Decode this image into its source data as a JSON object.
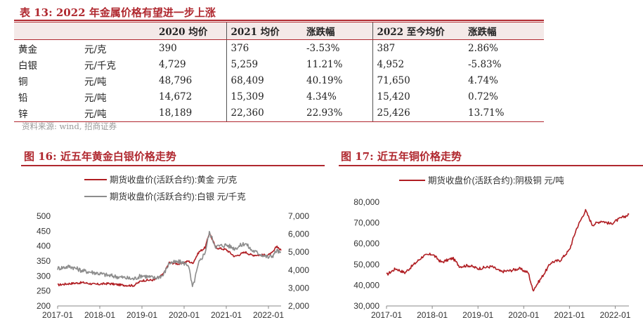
{
  "table": {
    "title": "表 13:  2022 年金属价格有望进一步上涨",
    "headers": [
      "",
      "",
      "2020 均价",
      "2021 均价",
      "涨跌幅",
      "2022 至今均价",
      "涨跌幅"
    ],
    "rows": [
      {
        "metal": "黄金",
        "unit": "元/克",
        "avg2020": "390",
        "avg2021": "376",
        "chg2021": "-3.53%",
        "avg2022": "387",
        "chg2022": "2.86%"
      },
      {
        "metal": "白银",
        "unit": "元/千克",
        "avg2020": "4,729",
        "avg2021": "5,259",
        "chg2021": "11.21%",
        "avg2022": "4,952",
        "chg2022": "-5.83%"
      },
      {
        "metal": "铜",
        "unit": "元/吨",
        "avg2020": "48,796",
        "avg2021": "68,409",
        "chg2021": "40.19%",
        "avg2022": "71,650",
        "chg2022": "4.74%"
      },
      {
        "metal": "铅",
        "unit": "元/吨",
        "avg2020": "14,672",
        "avg2021": "15,309",
        "chg2021": "4.34%",
        "avg2022": "15,420",
        "chg2022": "0.72%"
      },
      {
        "metal": "锌",
        "unit": "元/吨",
        "avg2020": "18,189",
        "avg2021": "22,360",
        "chg2021": "22.93%",
        "avg2022": "25,426",
        "chg2022": "13.71%"
      }
    ],
    "source": "资料来源:  wind,  招商证券"
  },
  "colors": {
    "accent": "#b0282f",
    "gold_line": "#b01e23",
    "silver_line": "#8c8c8c",
    "copper_line": "#b01e23",
    "header_bg": "#f4e9e8"
  },
  "chart_data": [
    {
      "type": "line",
      "title": "图 16:  近五年黄金白银价格走势",
      "x_ticks": [
        "2017-01",
        "2018-01",
        "2019-01",
        "2020-01",
        "2021-01",
        "2022-01"
      ],
      "x_range": [
        2017.0,
        2022.3
      ],
      "y_left": {
        "ticks": [
          "500",
          "450",
          "400",
          "350",
          "300",
          "250",
          "200"
        ],
        "range": [
          200,
          500
        ]
      },
      "y_right": {
        "ticks": [
          "7,000",
          "6,000",
          "5,000",
          "4,000",
          "3,000",
          "2,000"
        ],
        "range": [
          2000,
          7000
        ]
      },
      "legend_position": "top-left",
      "series": [
        {
          "name": "期货收盘价(活跃合约):黄金  元/克",
          "axis": "left",
          "x": [
            2017.0,
            2017.3,
            2017.6,
            2017.9,
            2018.2,
            2018.5,
            2018.8,
            2019.0,
            2019.3,
            2019.5,
            2019.65,
            2019.9,
            2020.1,
            2020.2,
            2020.35,
            2020.5,
            2020.6,
            2020.75,
            2021.0,
            2021.2,
            2021.45,
            2021.6,
            2021.8,
            2022.0,
            2022.1,
            2022.2,
            2022.3
          ],
          "y": [
            270,
            275,
            278,
            272,
            275,
            270,
            268,
            285,
            287,
            305,
            345,
            340,
            350,
            342,
            380,
            395,
            445,
            395,
            388,
            365,
            380,
            370,
            370,
            370,
            378,
            400,
            385
          ]
        },
        {
          "name": "期货收盘价(活跃合约):白银  元/千克",
          "axis": "right",
          "x": [
            2017.0,
            2017.3,
            2017.6,
            2017.9,
            2018.2,
            2018.5,
            2018.8,
            2019.0,
            2019.3,
            2019.5,
            2019.65,
            2019.9,
            2020.1,
            2020.2,
            2020.35,
            2020.5,
            2020.6,
            2020.75,
            2021.0,
            2021.2,
            2021.45,
            2021.6,
            2021.8,
            2022.0,
            2022.1,
            2022.2,
            2022.3
          ],
          "y": [
            4100,
            4200,
            3950,
            3850,
            3700,
            3600,
            3500,
            3700,
            3550,
            3700,
            4400,
            4450,
            4300,
            3000,
            4400,
            5000,
            6100,
            5300,
            5400,
            5200,
            5500,
            5100,
            4900,
            4700,
            4800,
            5100,
            4900
          ]
        }
      ]
    },
    {
      "type": "line",
      "title": "图 17:  近五年铜价格走势",
      "x_ticks": [
        "2017-01",
        "2018-01",
        "2019-01",
        "2020-01",
        "2021-01",
        "2022-01"
      ],
      "x_range": [
        2017.0,
        2022.3
      ],
      "y_left": {
        "ticks": [
          "80,000",
          "70,000",
          "60,000",
          "50,000",
          "40,000",
          "30,000"
        ],
        "range": [
          30000,
          80000
        ]
      },
      "legend_position": "top",
      "series": [
        {
          "name": "期货收盘价(活跃合约):阴极铜  元/吨",
          "axis": "left",
          "x": [
            2017.0,
            2017.2,
            2017.4,
            2017.6,
            2017.8,
            2018.0,
            2018.2,
            2018.45,
            2018.6,
            2018.8,
            2019.0,
            2019.3,
            2019.5,
            2019.7,
            2019.9,
            2020.1,
            2020.2,
            2020.4,
            2020.6,
            2020.8,
            2021.0,
            2021.15,
            2021.35,
            2021.5,
            2021.7,
            2021.9,
            2022.1,
            2022.3
          ],
          "y": [
            45000,
            48000,
            46000,
            50000,
            54000,
            55000,
            51000,
            53000,
            49000,
            49500,
            48000,
            49000,
            46500,
            47000,
            48000,
            46000,
            37500,
            44000,
            51000,
            52000,
            57000,
            67000,
            76000,
            69000,
            71000,
            69500,
            72000,
            74000
          ]
        }
      ]
    }
  ]
}
